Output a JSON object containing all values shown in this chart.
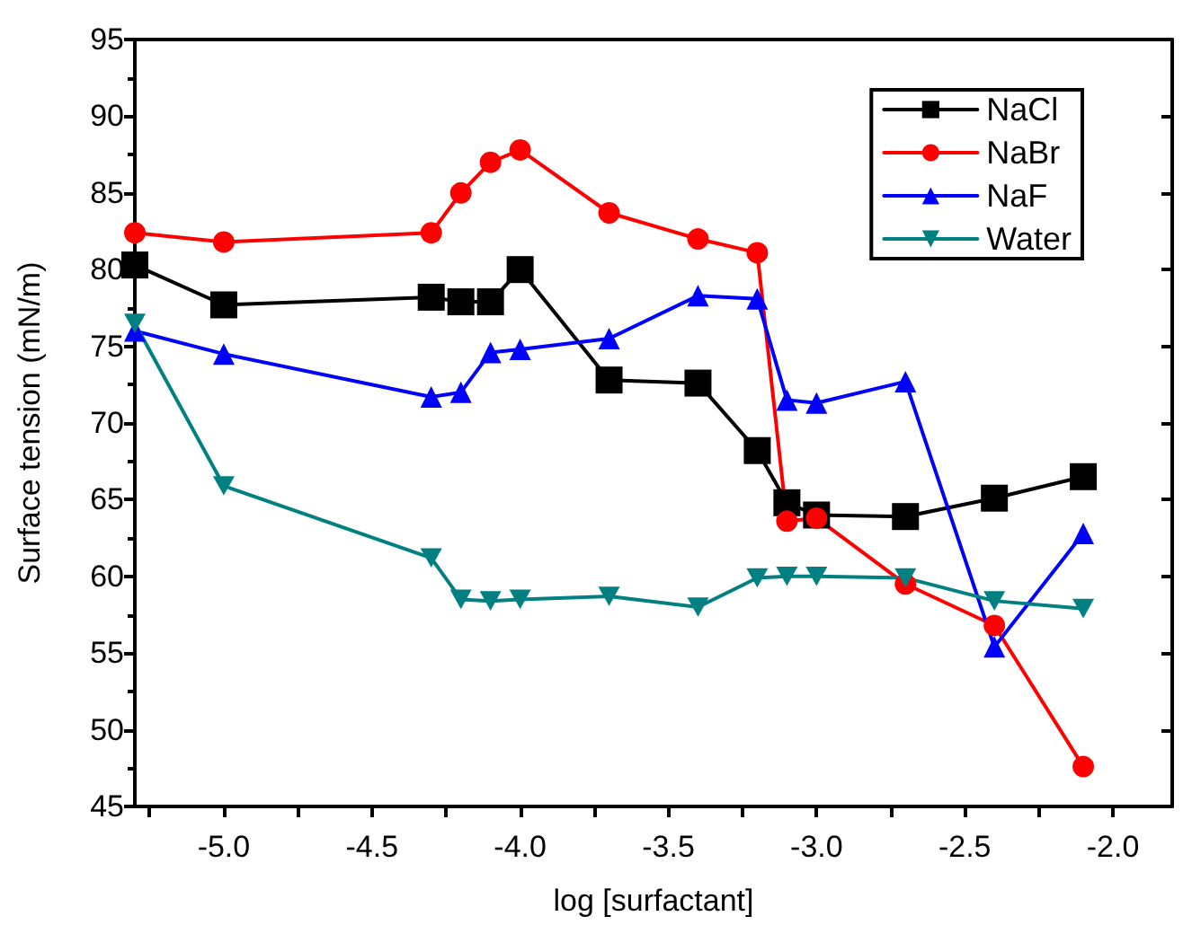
{
  "chart_data": {
    "type": "line",
    "xlabel": "log [surfactant]",
    "ylabel": "Surface tension (mN/m)",
    "x": [
      -5.3,
      -5.0,
      -4.3,
      -4.2,
      -4.1,
      -4.0,
      -3.7,
      -3.4,
      -3.2,
      -3.1,
      -3.0,
      -2.7,
      -2.4,
      -2.1
    ],
    "series": [
      {
        "name": "NaCl",
        "color": "#000000",
        "marker": "square",
        "values": [
          80.3,
          77.7,
          78.2,
          77.9,
          77.9,
          80.0,
          72.8,
          72.6,
          68.2,
          64.8,
          64.0,
          63.9,
          65.1,
          66.5
        ]
      },
      {
        "name": "NaBr",
        "color": "#ff0000",
        "marker": "circle",
        "values": [
          82.4,
          81.8,
          82.4,
          85.0,
          87.0,
          87.8,
          83.7,
          82.0,
          81.1,
          63.6,
          63.8,
          59.5,
          56.8,
          47.6
        ]
      },
      {
        "name": "NaF",
        "color": "#0000ff",
        "marker": "triangle",
        "values": [
          76.0,
          74.5,
          71.7,
          72.0,
          74.6,
          74.8,
          75.5,
          78.3,
          78.1,
          71.5,
          71.3,
          72.7,
          55.4,
          62.8
        ]
      },
      {
        "name": "Water",
        "color": "#008080",
        "marker": "triangle-down",
        "values": [
          76.5,
          65.9,
          61.2,
          58.5,
          58.4,
          58.5,
          58.7,
          58.0,
          59.9,
          60.0,
          60.0,
          59.9,
          58.4,
          57.9
        ]
      }
    ],
    "xlim": [
      -5.3,
      -1.8
    ],
    "xticks": [
      {
        "value": -5,
        "label": "-5.0"
      },
      {
        "value": -4.5,
        "label": "-4.5"
      },
      {
        "value": -4,
        "label": "-4.0"
      },
      {
        "value": -3.5,
        "label": "-3.5"
      },
      {
        "value": -3,
        "label": "-3.0"
      },
      {
        "value": -2.5,
        "label": "-2.5"
      },
      {
        "value": -2,
        "label": "-2.0"
      }
    ],
    "ylim": [
      45,
      95
    ],
    "yticks": [
      45,
      50,
      55,
      60,
      65,
      70,
      75,
      80,
      85,
      90,
      95
    ],
    "grid": false,
    "legend": "top right",
    "line_style": "solid"
  }
}
